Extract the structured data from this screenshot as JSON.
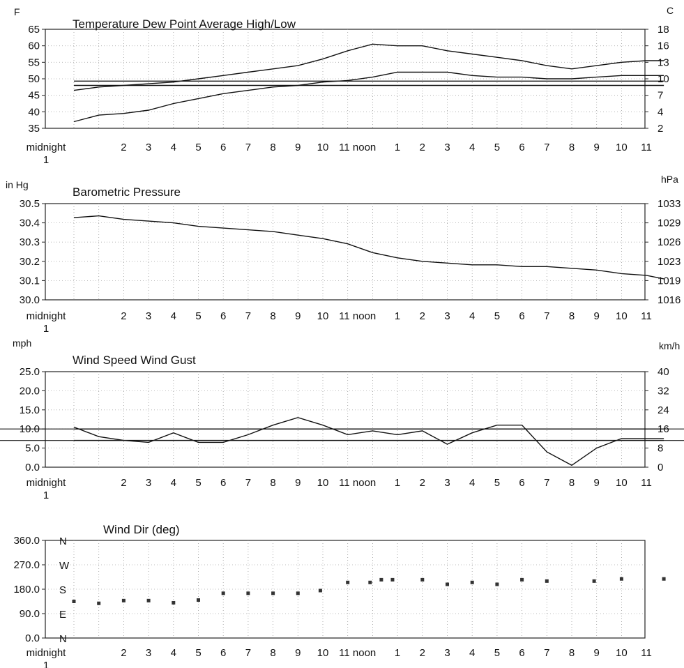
{
  "chart_data": [
    {
      "type": "line",
      "title": "Temperature   Dew Point   Average High/Low",
      "left_unit": "F",
      "right_unit": "C",
      "ylim": [
        35,
        65
      ],
      "y_ticks": [
        "65",
        "60",
        "55",
        "50",
        "45",
        "40",
        "35"
      ],
      "y_ticks_right": [
        "18",
        "16",
        "13",
        "10",
        "7",
        "4",
        "2"
      ],
      "x_labels": [
        "midnight",
        "2",
        "3",
        "4",
        "5",
        "6",
        "7",
        "8",
        "9",
        "10",
        "11 noon",
        "1",
        "2",
        "3",
        "4",
        "5",
        "6",
        "7",
        "8",
        "9",
        "10",
        "11"
      ],
      "x_label_sub": "1",
      "x": [
        0,
        1,
        2,
        3,
        4,
        5,
        6,
        7,
        8,
        9,
        10,
        11,
        12,
        13,
        14,
        15,
        16,
        17,
        18,
        19,
        20,
        21,
        22,
        23,
        23.7
      ],
      "series": [
        {
          "name": "Temperature",
          "values": [
            46.5,
            47.5,
            48,
            48.5,
            49,
            50,
            51,
            52,
            53,
            54,
            56,
            58.5,
            60.5,
            60,
            60,
            58.5,
            57.5,
            56.5,
            55.5,
            54,
            53,
            54,
            55,
            55.5,
            55.5
          ]
        },
        {
          "name": "Dew Point",
          "values": [
            37,
            39,
            39.5,
            40.5,
            42.5,
            44,
            45.5,
            46.5,
            47.5,
            48,
            49,
            49.5,
            50.5,
            52,
            52,
            52,
            51,
            50.5,
            50.5,
            50,
            50,
            50.5,
            51,
            51,
            51
          ]
        },
        {
          "values": [
            48,
            48,
            48,
            48,
            48,
            48,
            48,
            48,
            48,
            48,
            48,
            48,
            48,
            48,
            48,
            48,
            48,
            48,
            48,
            48,
            48,
            48,
            48,
            48,
            48
          ]
        },
        {
          "values": [
            49.3,
            49.3,
            49.3,
            49.3,
            49.3,
            49.3,
            49.3,
            49.3,
            49.3,
            49.3,
            49.3,
            49.3,
            49.3,
            49.3,
            49.3,
            49.3,
            49.3,
            49.3,
            49.3,
            49.3,
            49.3,
            49.3,
            49.3,
            49.3,
            49.3
          ]
        }
      ]
    },
    {
      "type": "line",
      "title": "Barometric Pressure",
      "left_unit": "in Hg",
      "right_unit": "hPa",
      "ylim": [
        30.0,
        30.55
      ],
      "y_ticks": [
        "30.5",
        "30.4",
        "30.3",
        "30.2",
        "30.1",
        "30.0"
      ],
      "y_ticks_right": [
        "1033",
        "1029",
        "1026",
        "1023",
        "1019",
        "1016"
      ],
      "x_labels": [
        "midnight",
        "2",
        "3",
        "4",
        "5",
        "6",
        "7",
        "8",
        "9",
        "10",
        "11 noon",
        "1",
        "2",
        "3",
        "4",
        "5",
        "6",
        "7",
        "8",
        "9",
        "10",
        "11"
      ],
      "x_label_sub": "1",
      "x": [
        0,
        1,
        2,
        3,
        4,
        5,
        6,
        7,
        8,
        9,
        10,
        11,
        12,
        13,
        14,
        15,
        16,
        17,
        18,
        19,
        20,
        21,
        22,
        23,
        23.7
      ],
      "series": [
        {
          "name": "Barometric Pressure",
          "values": [
            30.47,
            30.48,
            30.46,
            30.45,
            30.44,
            30.42,
            30.41,
            30.4,
            30.39,
            30.37,
            30.35,
            30.32,
            30.27,
            30.24,
            30.22,
            30.21,
            30.2,
            30.2,
            30.19,
            30.19,
            30.18,
            30.17,
            30.15,
            30.14,
            30.12
          ]
        }
      ]
    },
    {
      "type": "line",
      "title": "Wind Speed   Wind Gust",
      "left_unit": "mph",
      "right_unit": "km/h",
      "ylim": [
        0,
        25
      ],
      "y_ticks": [
        "25.0",
        "20.0",
        "15.0",
        "10.0",
        "5.0",
        "0.0"
      ],
      "y_ticks_right": [
        "40",
        "32",
        "24",
        "16",
        "8",
        "0"
      ],
      "x_labels": [
        "midnight",
        "2",
        "3",
        "4",
        "5",
        "6",
        "7",
        "8",
        "9",
        "10",
        "11 noon",
        "1",
        "2",
        "3",
        "4",
        "5",
        "6",
        "7",
        "8",
        "9",
        "10",
        "11"
      ],
      "x_label_sub": "1",
      "x": [
        0,
        1,
        2,
        3,
        4,
        5,
        6,
        7,
        8,
        9,
        10,
        11,
        12,
        13,
        14,
        15,
        16,
        17,
        18,
        19,
        20,
        21,
        22,
        23,
        23.7
      ],
      "series": [
        {
          "name": "Wind Speed",
          "values": [
            10.5,
            8,
            7,
            6.5,
            9,
            6.5,
            6.5,
            8.5,
            11,
            13,
            11,
            8.5,
            9.5,
            8.5,
            9.5,
            6,
            9,
            11,
            11,
            4,
            0.5,
            5,
            7.5,
            7.5,
            7.5
          ]
        },
        {
          "values": [
            10,
            10,
            10,
            10,
            10,
            10,
            10,
            10,
            10,
            10,
            10,
            10,
            10,
            10,
            10,
            10,
            10,
            10,
            10,
            10,
            10,
            10,
            10,
            10,
            10
          ]
        },
        {
          "values": [
            7,
            7,
            7,
            7,
            7,
            7,
            7,
            7,
            7,
            7,
            7,
            7,
            7,
            7,
            7,
            7,
            7,
            7,
            7,
            7,
            7,
            7,
            7,
            7,
            7
          ]
        }
      ]
    },
    {
      "type": "scatter",
      "title": "Wind Dir (deg)",
      "ylim": [
        0,
        360
      ],
      "y_ticks": [
        "360.0",
        "270.0",
        "180.0",
        "90.0",
        "0.0"
      ],
      "compass_labels": [
        "N",
        "W",
        "S",
        "E",
        "N"
      ],
      "x_labels": [
        "midnight",
        "2",
        "3",
        "4",
        "5",
        "6",
        "7",
        "8",
        "9",
        "10",
        "11 noon",
        "1",
        "2",
        "3",
        "4",
        "5",
        "6",
        "7",
        "8",
        "9",
        "10",
        "11"
      ],
      "x_label_sub": "1",
      "x": [
        0,
        1,
        2,
        3,
        4,
        5,
        6,
        7,
        8,
        9,
        9.9,
        11,
        11.9,
        12.35,
        12.8,
        14,
        15,
        16,
        17,
        18,
        19,
        20.9,
        22,
        23.7
      ],
      "series": [
        {
          "name": "Wind Dir (deg)",
          "values": [
            135,
            128,
            138,
            138,
            130,
            140,
            165,
            165,
            165,
            165,
            175,
            205,
            205,
            215,
            215,
            215,
            198,
            205,
            198,
            215,
            210,
            210,
            218,
            218
          ]
        }
      ]
    }
  ]
}
